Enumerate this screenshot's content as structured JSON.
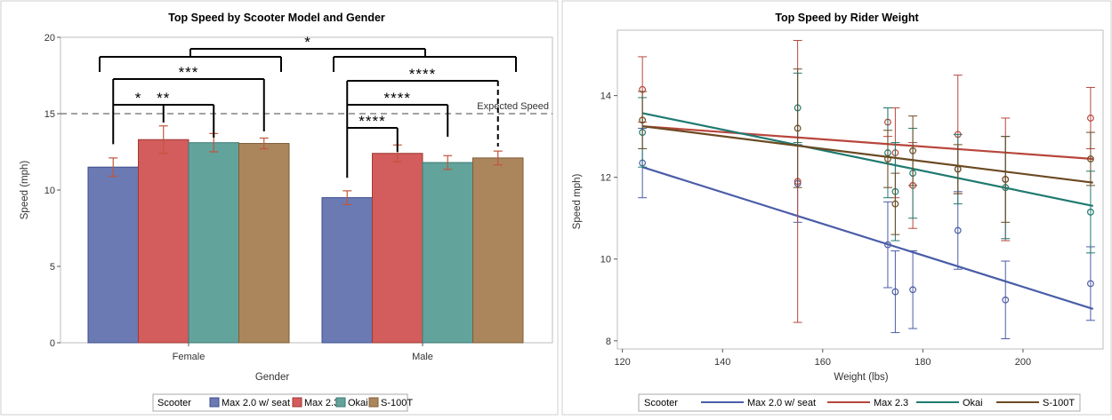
{
  "colors": {
    "blue": "#6b7ab3",
    "blue_dark": "#4a5da8",
    "blue_border": "#3c4d8c",
    "red": "#d35c5c",
    "red_dark": "#b8463c",
    "red_border": "#9e3a34",
    "teal": "#62a39c",
    "teal_dark": "#1f7a70",
    "teal_border": "#3d7a73",
    "brown": "#ab865d",
    "brown_dark": "#6b4a22",
    "brown_border": "#7e5d36",
    "errbar": "#c0563b"
  },
  "chart_data": [
    {
      "type": "bar",
      "title": "Top Speed by Scooter Model and Gender",
      "xlabel": "Gender",
      "ylabel": "Speed (mph)",
      "ylim": [
        0,
        20
      ],
      "yticks": [
        "0",
        "5",
        "10",
        "15",
        "20"
      ],
      "categories": [
        "Female",
        "Male"
      ],
      "series": [
        {
          "name": "Max 2.0 w/ seat",
          "color_key": "blue",
          "values": [
            11.5,
            9.5
          ],
          "err": [
            0.6,
            0.45
          ]
        },
        {
          "name": "Max 2.3",
          "color_key": "red",
          "values": [
            13.3,
            12.4
          ],
          "err": [
            0.9,
            0.55
          ]
        },
        {
          "name": "Okai",
          "color_key": "teal",
          "values": [
            13.1,
            11.8
          ],
          "err": [
            0.6,
            0.45
          ]
        },
        {
          "name": "S-100T",
          "color_key": "brown",
          "values": [
            13.05,
            12.1
          ],
          "err": [
            0.35,
            0.45
          ]
        }
      ],
      "reference_line": {
        "value": 15,
        "label": "Expected Speed"
      },
      "significance": [
        {
          "label": "*",
          "level": 1
        },
        {
          "label": "***",
          "level": 2
        },
        {
          "label": "**",
          "level": 3
        },
        {
          "label": "*",
          "level": 4
        },
        {
          "label": "****",
          "level": 2
        },
        {
          "label": "****",
          "level": 3
        },
        {
          "label": "****",
          "level": 4
        }
      ],
      "legend": {
        "title": "Scooter",
        "placement": "bottom"
      },
      "grid": false
    },
    {
      "type": "scatter",
      "title": "Top Speed by Rider Weight",
      "xlabel": "Weight (lbs)",
      "ylabel": "Speed mph)",
      "xlim": [
        119,
        216
      ],
      "ylim": [
        7.8,
        15.6
      ],
      "xticks": [
        "120",
        "140",
        "160",
        "180",
        "200"
      ],
      "yticks": [
        "8",
        "10",
        "12",
        "14"
      ],
      "series": [
        {
          "name": "Max 2.0 w/ seat",
          "color_key": "blue_dark",
          "x": [
            124,
            155,
            173,
            174.5,
            178,
            187,
            196.5,
            213.5
          ],
          "y": [
            12.35,
            11.85,
            10.35,
            9.2,
            9.25,
            10.7,
            9.0,
            9.4
          ],
          "err": [
            0.85,
            0.95,
            1.05,
            1.0,
            0.95,
            0.95,
            0.95,
            0.9
          ],
          "fit": [
            [
              124,
              12.25
            ],
            [
              214,
              8.78
            ]
          ]
        },
        {
          "name": "Max 2.3",
          "color_key": "red_dark",
          "x": [
            124,
            155,
            173,
            174.5,
            178,
            187,
            196.5,
            213.5
          ],
          "y": [
            14.15,
            11.9,
            13.35,
            12.6,
            11.8,
            13.05,
            11.95,
            13.45
          ],
          "err": [
            0.8,
            3.45,
            0.35,
            1.1,
            1.05,
            1.45,
            1.5,
            0.75
          ],
          "fit": [
            [
              124,
              13.25
            ],
            [
              214,
              12.45
            ]
          ]
        },
        {
          "name": "Okai",
          "color_key": "teal_dark",
          "x": [
            124,
            155,
            173,
            174.5,
            178,
            187,
            196.5,
            213.5
          ],
          "y": [
            13.1,
            13.7,
            12.6,
            11.65,
            12.1,
            12.2,
            11.75,
            11.15
          ],
          "err": [
            0.85,
            0.85,
            1.1,
            1.2,
            1.1,
            0.85,
            1.25,
            1.0
          ],
          "fit": [
            [
              124,
              13.57
            ],
            [
              214,
              11.3
            ]
          ]
        },
        {
          "name": "S-100T",
          "color_key": "brown_dark",
          "x": [
            124,
            155,
            173,
            174.5,
            178,
            187,
            196.5,
            213.5
          ],
          "y": [
            13.4,
            13.2,
            12.45,
            11.35,
            12.65,
            12.2,
            11.95,
            12.45
          ],
          "err": [
            0.7,
            1.45,
            0.7,
            0.75,
            0.85,
            0.6,
            1.05,
            0.65
          ],
          "fit": [
            [
              124,
              13.25
            ],
            [
              214,
              11.87
            ]
          ]
        }
      ],
      "legend": {
        "title": "Scooter",
        "placement": "bottom"
      },
      "grid": false
    }
  ]
}
